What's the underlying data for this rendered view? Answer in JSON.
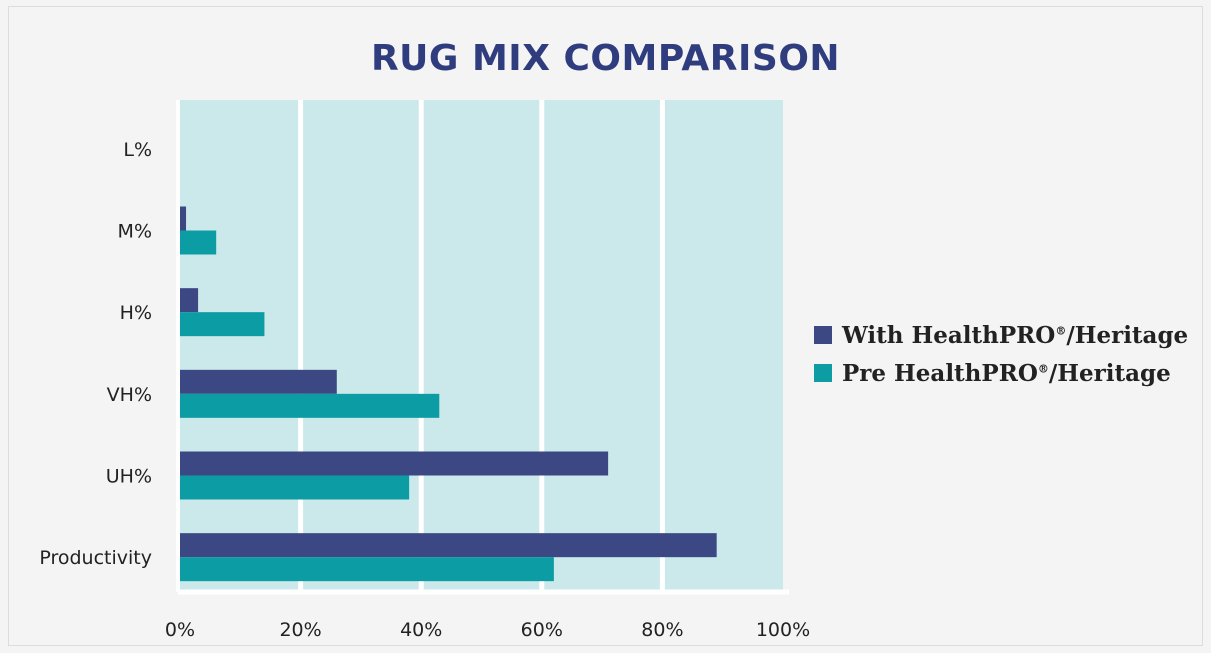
{
  "chart_data": {
    "type": "bar",
    "orientation": "horizontal",
    "title": "RUG MIX COMPARISON",
    "categories": [
      "L%",
      "M%",
      "H%",
      "VH%",
      "UH%",
      "Productivity"
    ],
    "series": [
      {
        "name_base": "With HealthPRO",
        "name_sup": "®",
        "name_tail": "/Heritage",
        "color": "#3b4884",
        "values": [
          0,
          1,
          3,
          26,
          71,
          89
        ]
      },
      {
        "name_base": "Pre HealthPRO",
        "name_sup": "®",
        "name_tail": "/Heritage",
        "color": "#0c9ca3",
        "values": [
          0,
          6,
          14,
          43,
          38,
          62
        ]
      }
    ],
    "x_ticks": [
      "0%",
      "20%",
      "40%",
      "60%",
      "80%",
      "100%"
    ],
    "xlim": [
      0,
      100
    ],
    "grid": true,
    "legend_position": "right",
    "plot_background": "#cbe9ea"
  }
}
